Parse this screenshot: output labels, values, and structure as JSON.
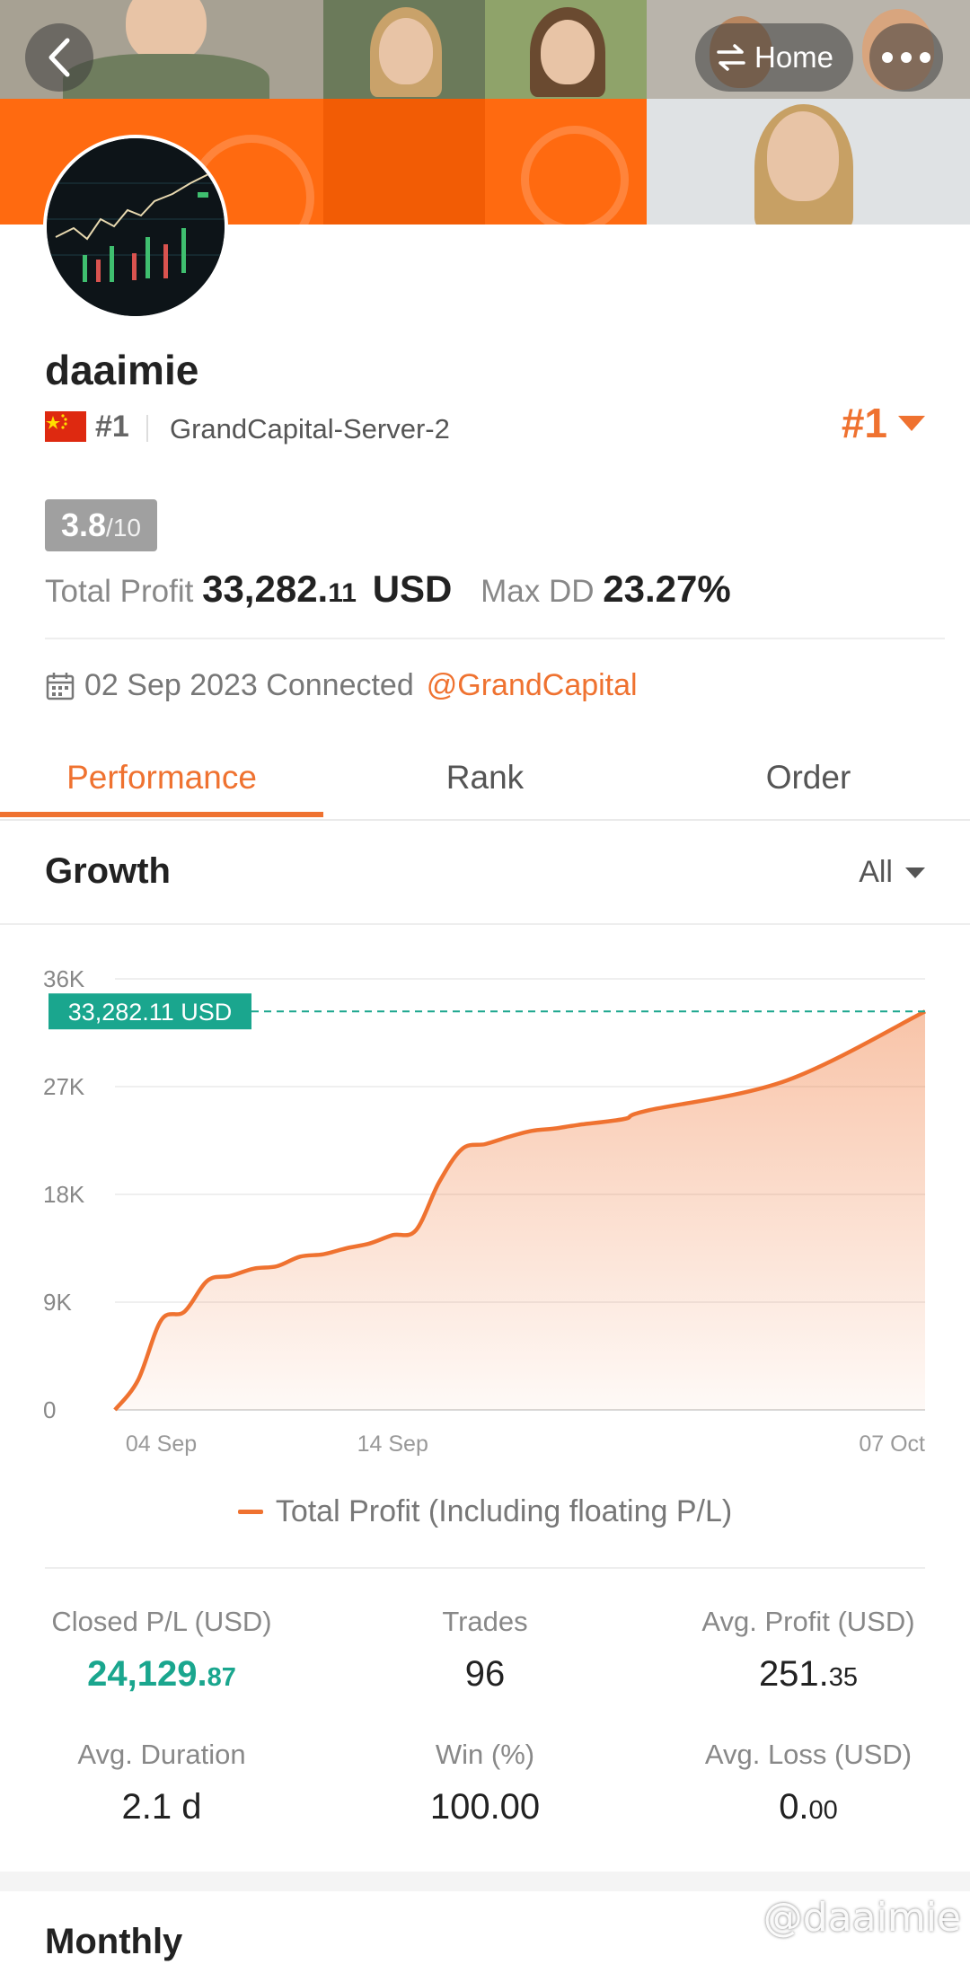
{
  "header": {
    "home_label": "Home",
    "accent_color": "#ef7230",
    "banner_color": "#ff6a10"
  },
  "profile": {
    "username": "daaimie",
    "country_flag": "china-flag",
    "rank": "#1",
    "server": "GrandCapital-Server-2",
    "rank_badge": "#1",
    "score": "3.8",
    "score_max": "/10",
    "total_profit_label": "Total Profit",
    "total_profit_int": "33,282.",
    "total_profit_dec": "11",
    "total_profit_unit": "USD",
    "max_dd_label": "Max DD",
    "max_dd_value": "23.27%",
    "connected_text": "02 Sep 2023 Connected",
    "broker_link": "@GrandCapital"
  },
  "tabs": [
    {
      "label": "Performance",
      "active": true
    },
    {
      "label": "Rank",
      "active": false
    },
    {
      "label": "Order",
      "active": false
    }
  ],
  "growth": {
    "title": "Growth",
    "filter": "All"
  },
  "chart_data": {
    "type": "area",
    "title": "",
    "xlabel": "",
    "ylabel": "",
    "ylim": [
      0,
      36000
    ],
    "y_ticks": [
      "0",
      "9K",
      "18K",
      "27K",
      "36K"
    ],
    "y_tick_values": [
      0,
      9000,
      18000,
      27000,
      36000
    ],
    "x_ticks": [
      "04 Sep",
      "14 Sep",
      "07 Oct"
    ],
    "x_tick_dates": [
      "2023-09-04",
      "2023-09-14",
      "2023-10-07"
    ],
    "x_range": [
      "2023-09-02",
      "2023-10-07"
    ],
    "latest_label": "33,282.11 USD",
    "latest_value": 33282.11,
    "series": [
      {
        "name": "Total Profit (Including floating P/L)",
        "color": "#ef7230",
        "points": [
          [
            "2023-09-02",
            0
          ],
          [
            "2023-09-03",
            2500
          ],
          [
            "2023-09-04",
            7500
          ],
          [
            "2023-09-05",
            8200
          ],
          [
            "2023-09-06",
            10800
          ],
          [
            "2023-09-07",
            11200
          ],
          [
            "2023-09-08",
            11800
          ],
          [
            "2023-09-09",
            12000
          ],
          [
            "2023-09-10",
            12800
          ],
          [
            "2023-09-11",
            13000
          ],
          [
            "2023-09-12",
            13500
          ],
          [
            "2023-09-13",
            13900
          ],
          [
            "2023-09-14",
            14600
          ],
          [
            "2023-09-15",
            15000
          ],
          [
            "2023-09-16",
            19000
          ],
          [
            "2023-09-17",
            21800
          ],
          [
            "2023-09-18",
            22200
          ],
          [
            "2023-09-19",
            22800
          ],
          [
            "2023-09-20",
            23300
          ],
          [
            "2023-09-21",
            23500
          ],
          [
            "2023-09-22",
            23800
          ],
          [
            "2023-09-24",
            24300
          ],
          [
            "2023-09-25",
            25000
          ],
          [
            "2023-10-01",
            27500
          ],
          [
            "2023-10-07",
            33282.11
          ]
        ]
      }
    ],
    "grid": true,
    "legend_position": "bottom"
  },
  "metrics": [
    {
      "label": "Closed P/L (USD)",
      "int": "24,129.",
      "dec": "87",
      "green": true
    },
    {
      "label": "Trades",
      "int": "96",
      "dec": "",
      "green": false
    },
    {
      "label": "Avg. Profit (USD)",
      "int": "251.",
      "dec": "35",
      "green": false
    },
    {
      "label": "Avg. Duration",
      "int": "2.1 d",
      "dec": "",
      "green": false
    },
    {
      "label": "Win (%)",
      "int": "100.00",
      "dec": "",
      "green": false
    },
    {
      "label": "Avg. Loss (USD)",
      "int": "0.",
      "dec": "00",
      "green": false
    }
  ],
  "monthly": {
    "title": "Monthly"
  },
  "watermark": "@daaimie"
}
